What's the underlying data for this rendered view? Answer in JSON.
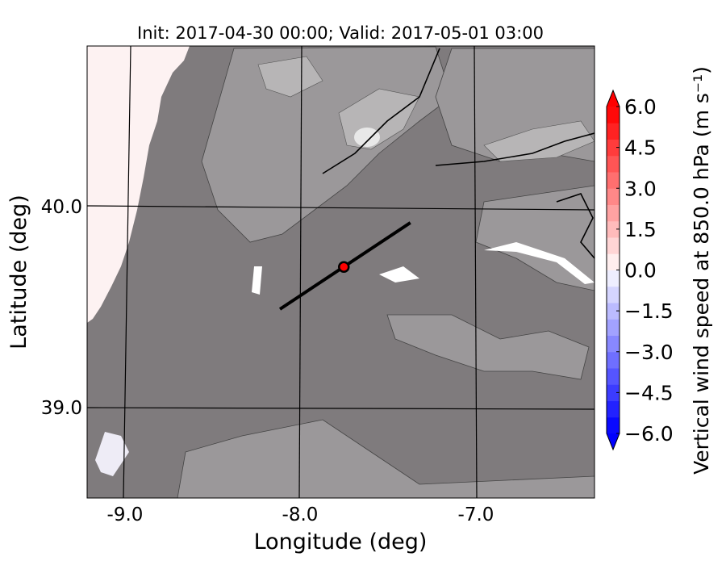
{
  "chart_data": {
    "type": "heatmap",
    "title": "Init: 2017-04-30 00:00; Valid: 2017-05-01 03:00",
    "xlabel": "Longitude (deg)",
    "ylabel": "Latitude (deg)",
    "xlim": [
      -9.22,
      -6.34
    ],
    "ylim": [
      38.55,
      40.8
    ],
    "xticks": [
      -9.0,
      -8.0,
      -7.0
    ],
    "xtick_labels": [
      "-9.0",
      "-8.0",
      "-7.0"
    ],
    "yticks": [
      39.0,
      40.0
    ],
    "ytick_labels": [
      "39.0",
      "40.0"
    ],
    "grid": true,
    "colorbar": {
      "label": "Vertical wind speed at 850.0 hPa (m s⁻¹)",
      "range": [
        -6.0,
        6.0
      ],
      "levels_step": 0.6,
      "extend": "both",
      "ticks": [
        6.0,
        4.5,
        3.0,
        1.5,
        0.0,
        -1.5,
        -3.0,
        -4.5,
        -6.0
      ],
      "tick_labels": [
        "6.0",
        "4.5",
        "3.0",
        "1.5",
        "0.0",
        "−1.5",
        "−3.0",
        "−4.5",
        "−6.0"
      ],
      "colormap": "bwr",
      "location": "right"
    },
    "transect": {
      "start": [
        -8.115,
        39.49
      ],
      "end": [
        -7.37,
        39.92
      ],
      "color": "#000000"
    },
    "marker": {
      "lon": -7.75,
      "lat": 39.7,
      "color": "#ff0000"
    },
    "colors": {
      "terrain": "#7f7b7d",
      "terrain_high": "#a9a7a8",
      "ocean": "#fdf2f2"
    }
  }
}
